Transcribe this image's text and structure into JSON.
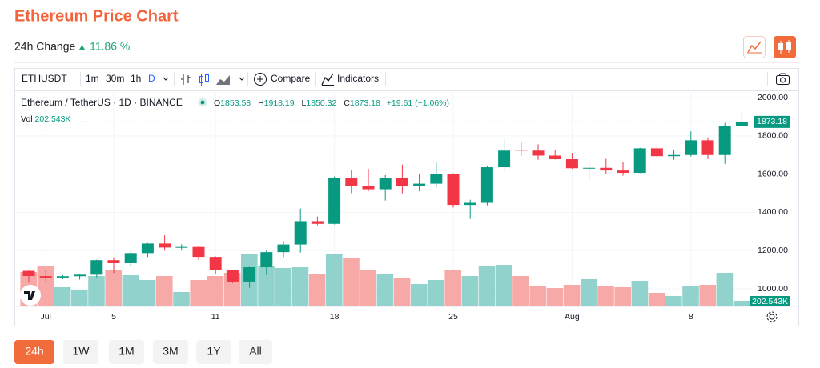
{
  "header": {
    "title": "Ethereum Price Chart",
    "change_label": "24h Change",
    "change_value": "11.86 %"
  },
  "toolbar": {
    "symbol": "ETHUSDT",
    "intervals": [
      "1m",
      "30m",
      "1h",
      "D"
    ],
    "compare": "Compare",
    "indicators": "Indicators"
  },
  "chart_data": {
    "type": "candlestick",
    "title": "Ethereum / TetherUS · 1D · BINANCE",
    "categories": [
      null,
      "Jul",
      null,
      null,
      null,
      "5",
      null,
      null,
      null,
      null,
      null,
      "11",
      null,
      null,
      null,
      null,
      null,
      null,
      "18",
      null,
      null,
      null,
      null,
      null,
      null,
      "25",
      null,
      null,
      null,
      null,
      null,
      null,
      "Aug",
      null,
      null,
      null,
      null,
      null,
      null,
      "8",
      null,
      null,
      null
    ],
    "open": [
      1094,
      1067,
      1059,
      1066,
      1074,
      1150,
      1134,
      1187,
      1237,
      1216,
      1219,
      1167,
      1097,
      1038,
      1113,
      1192,
      1232,
      1354,
      1340,
      1581,
      1540,
      1521,
      1578,
      1537,
      1550,
      1600,
      1439,
      1450,
      1636,
      1728,
      1723,
      1697,
      1678,
      1631,
      1633,
      1619,
      1607,
      1735,
      1694,
      1700,
      1777,
      1700,
      1853.58
    ],
    "high": [
      1100,
      1100,
      1072,
      1080,
      1152,
      1165,
      1192,
      1240,
      1280,
      1233,
      1224,
      1170,
      1100,
      1115,
      1200,
      1250,
      1420,
      1378,
      1588,
      1620,
      1628,
      1595,
      1650,
      1602,
      1664,
      1605,
      1466,
      1642,
      1785,
      1767,
      1756,
      1725,
      1711,
      1660,
      1680,
      1662,
      1738,
      1746,
      1726,
      1824,
      1792,
      1868,
      1918.19
    ],
    "low": [
      1033,
      1036,
      1050,
      1048,
      1060,
      1083,
      1120,
      1166,
      1200,
      1205,
      1151,
      1080,
      1030,
      1006,
      1072,
      1166,
      1190,
      1333,
      1337,
      1500,
      1510,
      1462,
      1500,
      1510,
      1533,
      1425,
      1365,
      1437,
      1612,
      1693,
      1675,
      1676,
      1628,
      1568,
      1600,
      1592,
      1605,
      1688,
      1675,
      1692,
      1678,
      1654,
      1850.32
    ],
    "close": [
      1067,
      1059,
      1066,
      1074,
      1150,
      1134,
      1187,
      1237,
      1216,
      1219,
      1167,
      1097,
      1038,
      1113,
      1192,
      1232,
      1354,
      1340,
      1581,
      1540,
      1521,
      1578,
      1537,
      1550,
      1600,
      1439,
      1450,
      1636,
      1723,
      1723,
      1697,
      1678,
      1631,
      1633,
      1619,
      1607,
      1735,
      1694,
      1700,
      1777,
      1700,
      1853,
      1873.18
    ],
    "legend_keys": [
      "O",
      "H",
      "L",
      "C"
    ],
    "change_label": "+19.61 (+1.06%)",
    "volume": {
      "name": "Vol",
      "values": [
        1243,
        1445,
        694,
        578,
        1098,
        1301,
        1127,
        954,
        1098,
        520,
        954,
        1098,
        1214,
        1907,
        1474,
        1387,
        1416,
        1156,
        1907,
        1734,
        1301,
        1156,
        1012,
        809,
        954,
        1329,
        1098,
        1445,
        1503,
        1098,
        751,
        665,
        780,
        983,
        723,
        694,
        925,
        491,
        376,
        751,
        780,
        1214,
        202.543
      ],
      "value_labels": [
        null,
        null,
        null,
        null,
        null,
        null,
        null,
        null,
        null,
        null,
        null,
        null,
        null,
        null,
        null,
        null,
        null,
        null,
        null,
        null,
        null,
        null,
        null,
        null,
        null,
        null,
        null,
        null,
        null,
        null,
        null,
        null,
        null,
        null,
        null,
        null,
        null,
        null,
        null,
        null,
        null,
        null,
        "202.543K"
      ]
    },
    "up_color": "#089981",
    "down_color": "#f23645",
    "volume_up_color": "#92d2cc",
    "volume_down_color": "#f7a9a7",
    "ylim": [
      908,
      2038
    ],
    "yticks": [
      {
        "value": 1000,
        "label": "1000.00"
      },
      {
        "value": 1200,
        "label": "1200.00"
      },
      {
        "value": 1400,
        "label": "1400.00"
      },
      {
        "value": 1600,
        "label": "1600.00"
      },
      {
        "value": 1800,
        "label": "1800.00"
      },
      {
        "value": 2000,
        "label": "2000.00"
      }
    ],
    "grid": true
  },
  "ranges": {
    "buttons": [
      "24h",
      "1W",
      "1M",
      "3M",
      "1Y",
      "All"
    ]
  }
}
